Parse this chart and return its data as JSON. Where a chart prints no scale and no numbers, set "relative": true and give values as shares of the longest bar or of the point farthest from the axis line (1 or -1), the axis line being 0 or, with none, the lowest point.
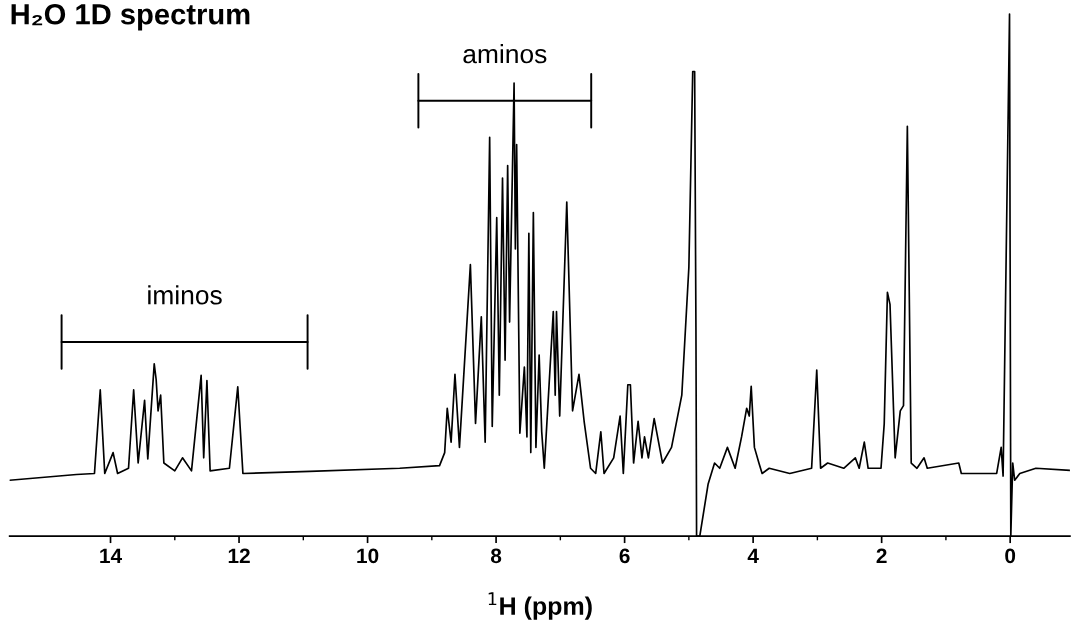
{
  "chart_data": {
    "type": "line",
    "title": "H₂O 1D spectrum",
    "xlabel": "$^{1}$H (ppm)",
    "relative": true,
    "xlim": [
      15.57,
      -0.93
    ],
    "xticks": [
      14,
      {
        "value": 13,
        "label": null
      },
      12,
      {
        "value": 11,
        "label": null
      },
      10,
      {
        "value": 9,
        "label": null
      },
      8,
      {
        "value": 7,
        "label": null
      },
      6,
      {
        "value": 5,
        "label": null
      },
      4,
      {
        "value": 3,
        "label": null
      },
      2,
      {
        "value": 1,
        "label": null
      },
      0
    ],
    "tick_labels": "x",
    "grid": false,
    "legend": false,
    "marker": "none",
    "line_style": "solid",
    "annotations": [
      "iminos",
      "aminos"
    ],
    "series": [
      {
        "color": "#000000",
        "x": [
          15.57,
          14.53,
          14.25,
          14.16,
          14.09,
          13.96,
          13.89,
          13.72,
          13.64,
          13.57,
          13.47,
          13.42,
          13.32,
          13.29,
          13.26,
          13.22,
          13.17,
          13.0,
          12.88,
          12.74,
          12.59,
          12.55,
          12.5,
          12.45,
          12.15,
          12.02,
          11.94,
          10.9,
          9.5,
          8.88,
          8.8,
          8.76,
          8.7,
          8.64,
          8.57,
          8.4,
          8.32,
          8.23,
          8.17,
          8.1,
          8.06,
          7.99,
          7.95,
          7.9,
          7.86,
          7.82,
          7.79,
          7.72,
          7.7,
          7.68,
          7.63,
          7.56,
          7.52,
          7.49,
          7.46,
          7.42,
          7.38,
          7.33,
          7.29,
          7.25,
          7.11,
          7.08,
          7.06,
          7.01,
          6.9,
          6.81,
          6.71,
          6.63,
          6.53,
          6.45,
          6.37,
          6.32,
          6.17,
          6.07,
          6.02,
          5.95,
          5.91,
          5.86,
          5.79,
          5.73,
          5.69,
          5.63,
          5.54,
          5.41,
          5.27,
          5.11,
          5.0,
          4.94,
          4.91,
          4.89,
          4.88,
          4.83,
          4.7,
          4.6,
          4.52,
          4.4,
          4.28,
          4.18,
          4.1,
          4.06,
          4.03,
          3.98,
          3.91,
          3.86,
          3.75,
          3.43,
          3.09,
          3.01,
          2.95,
          2.84,
          2.59,
          2.41,
          2.35,
          2.27,
          2.21,
          2.01,
          1.96,
          1.91,
          1.87,
          1.79,
          1.71,
          1.66,
          1.6,
          1.54,
          1.45,
          1.34,
          1.29,
          0.8,
          0.76,
          0.21,
          0.14,
          0.11,
          0.03,
          0.01,
          -0.01,
          -0.04,
          -0.07,
          -0.15,
          -0.4,
          -0.93
        ],
        "values": [
          0.107,
          0.118,
          0.12,
          0.28,
          0.12,
          0.16,
          0.12,
          0.13,
          0.28,
          0.14,
          0.26,
          0.148,
          0.33,
          0.3,
          0.24,
          0.27,
          0.14,
          0.125,
          0.15,
          0.125,
          0.308,
          0.15,
          0.298,
          0.125,
          0.13,
          0.286,
          0.12,
          0.124,
          0.13,
          0.135,
          0.16,
          0.245,
          0.18,
          0.31,
          0.17,
          0.52,
          0.216,
          0.42,
          0.18,
          0.764,
          0.21,
          0.61,
          0.27,
          0.686,
          0.337,
          0.71,
          0.41,
          0.868,
          0.55,
          0.75,
          0.197,
          0.324,
          0.19,
          0.58,
          0.16,
          0.62,
          0.17,
          0.347,
          0.2,
          0.13,
          0.43,
          0.27,
          0.43,
          0.23,
          0.64,
          0.24,
          0.31,
          0.22,
          0.13,
          0.12,
          0.2,
          0.12,
          0.15,
          0.23,
          0.12,
          0.29,
          0.29,
          0.14,
          0.22,
          0.15,
          0.19,
          0.15,
          0.225,
          0.14,
          0.17,
          0.27,
          0.515,
          0.89,
          0.89,
          0.4,
          0,
          0,
          0.1,
          0.14,
          0.13,
          0.17,
          0.13,
          0.19,
          0.245,
          0.23,
          0.287,
          0.17,
          0.14,
          0.12,
          0.13,
          0.12,
          0.13,
          0.318,
          0.13,
          0.14,
          0.13,
          0.15,
          0.13,
          0.18,
          0.13,
          0.13,
          0.215,
          0.467,
          0.444,
          0.15,
          0.24,
          0.25,
          0.785,
          0.14,
          0.13,
          0.15,
          0.13,
          0.14,
          0.12,
          0.12,
          0.17,
          0.115,
          0.82,
          1.0,
          0,
          0.14,
          0.107,
          0.12,
          0.13,
          0.126
        ]
      }
    ]
  }
}
